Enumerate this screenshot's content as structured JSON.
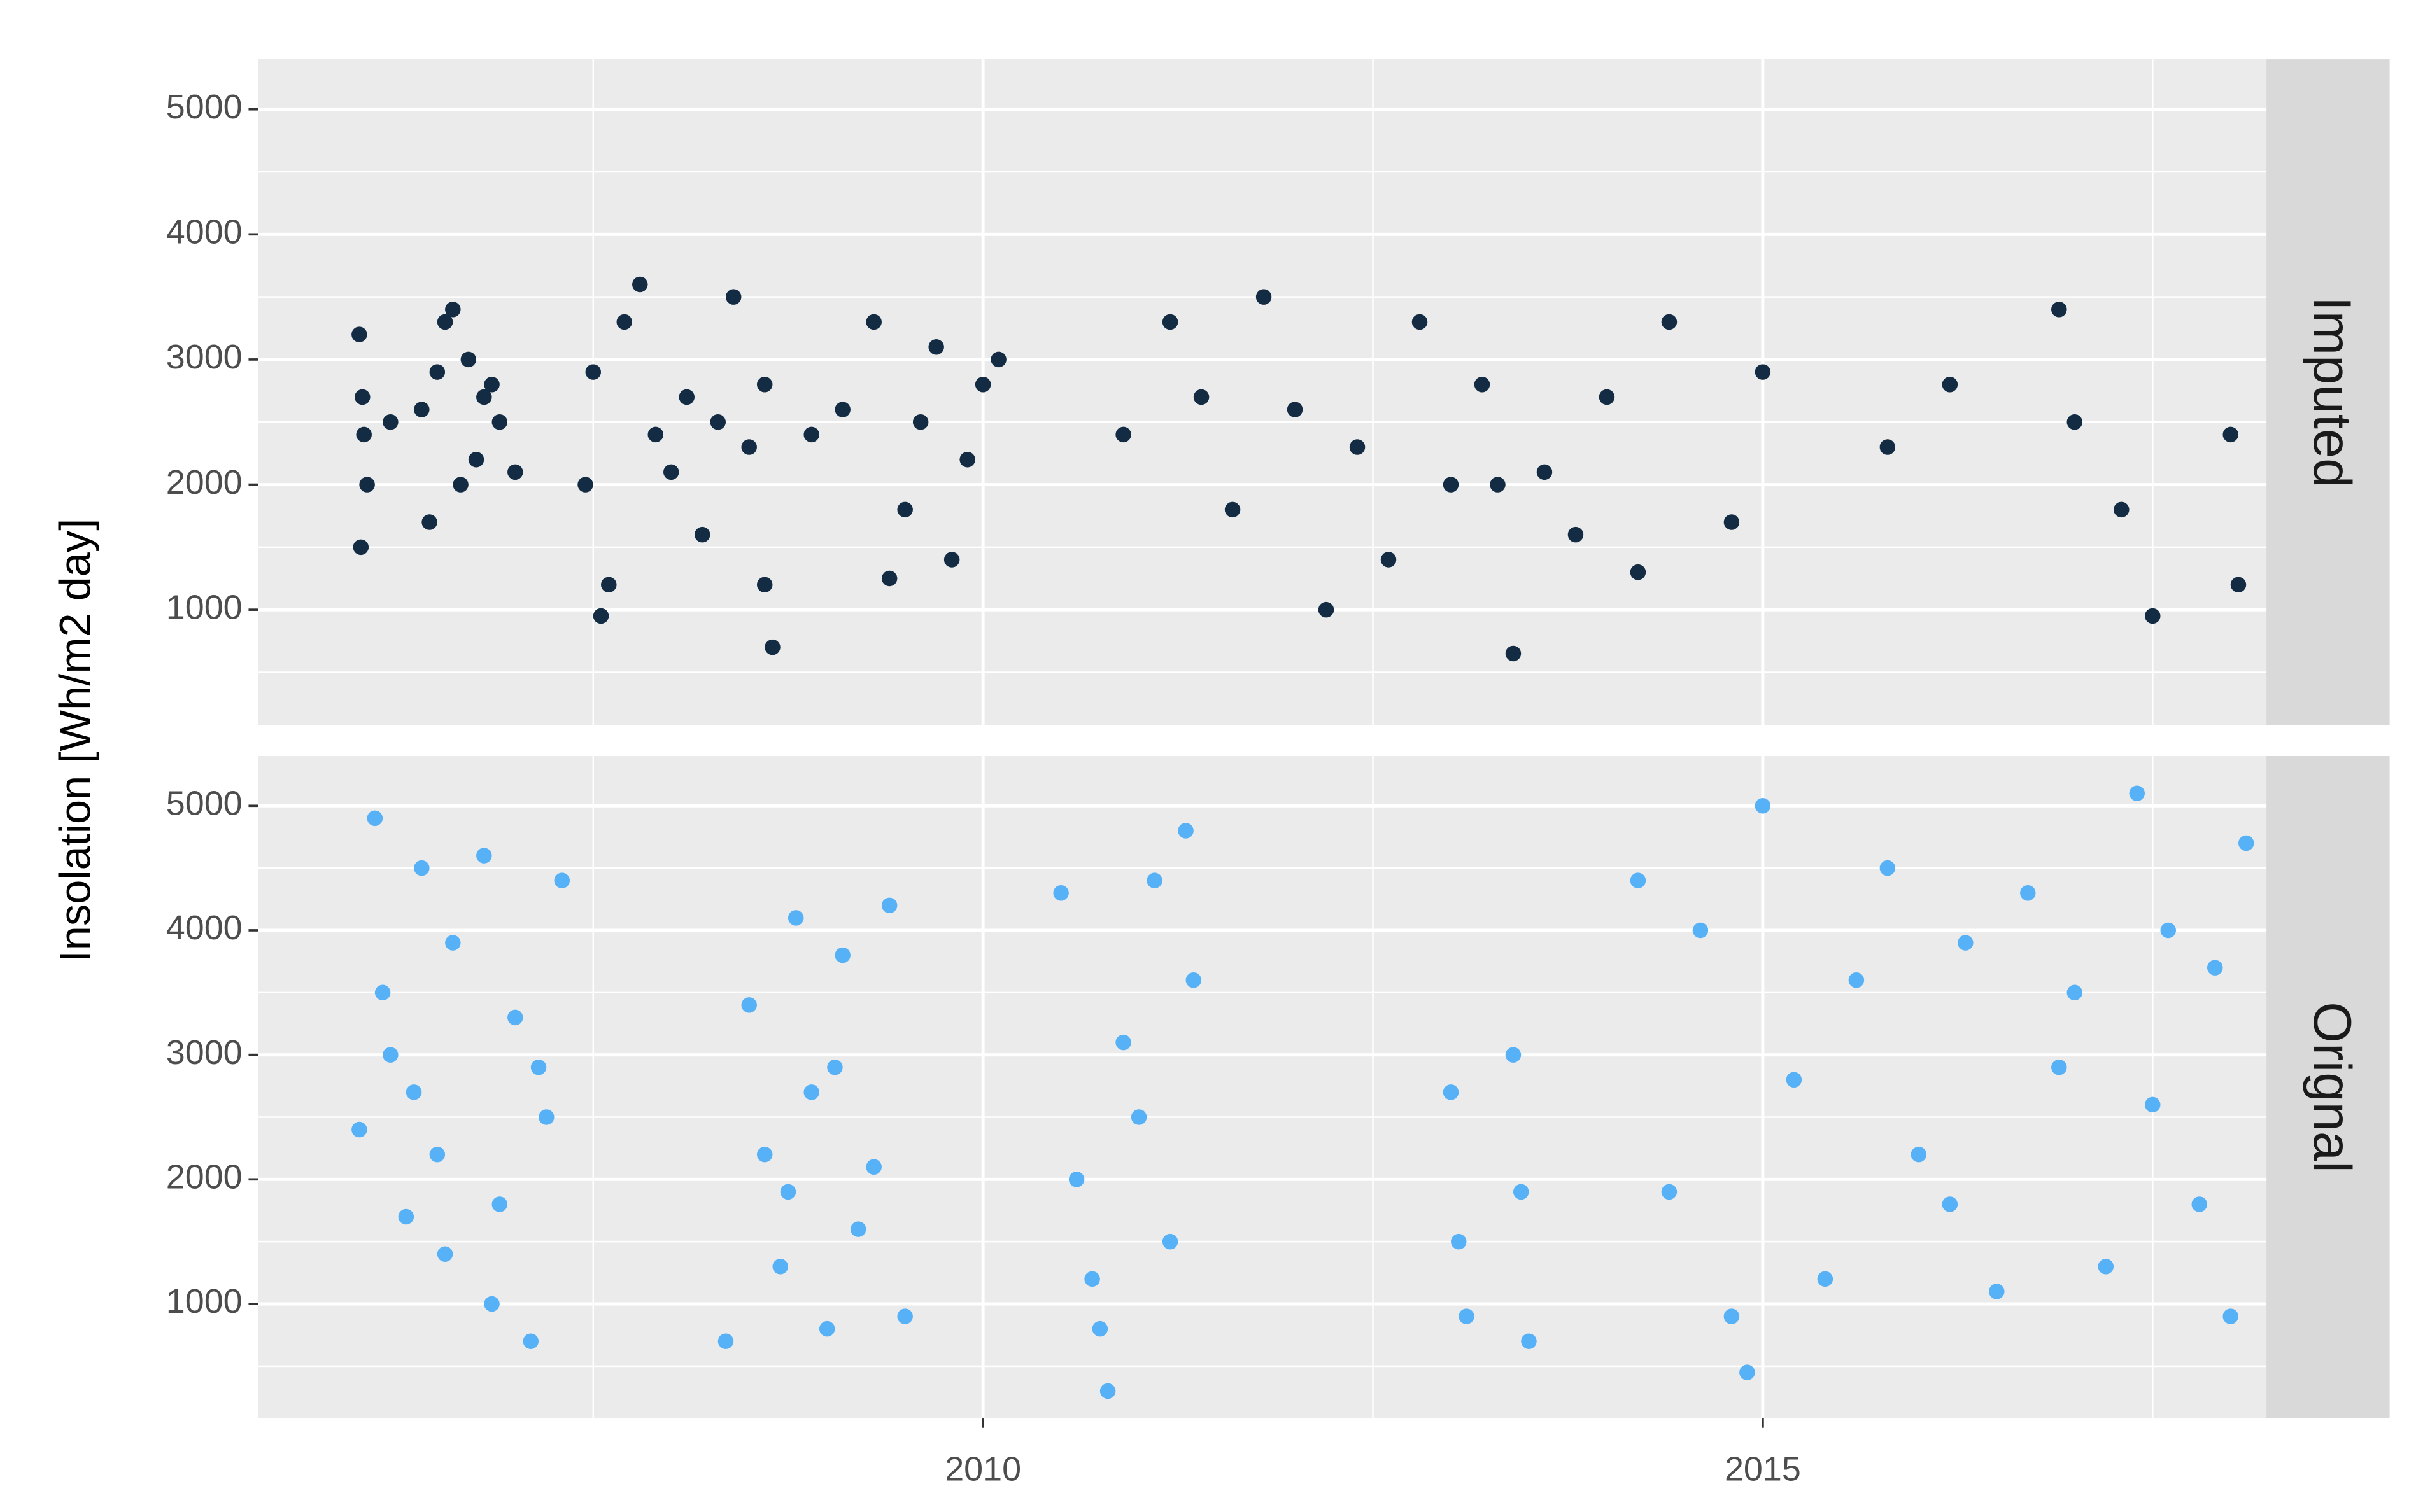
{
  "chart_data": [
    {
      "type": "scatter",
      "facet_label": "Imputed",
      "y_label": "Insolation [Wh/m2 day]",
      "color": "#132b43",
      "x": [
        2006.0,
        2006.02,
        2006.05,
        2006.03,
        2006.01,
        2006.2,
        2006.4,
        2006.5,
        2006.6,
        2006.7,
        2006.75,
        2006.8,
        2006.65,
        2006.55,
        2006.9,
        2007.0,
        2006.45,
        2006.85,
        2007.45,
        2007.5,
        2007.6,
        2007.7,
        2007.8,
        2007.9,
        2008.0,
        2008.1,
        2008.2,
        2008.3,
        2008.4,
        2008.5,
        2008.6,
        2008.65,
        2007.55,
        2008.6,
        2008.9,
        2009.1,
        2009.3,
        2009.5,
        2009.6,
        2009.7,
        2009.8,
        2009.9,
        2010.0,
        2010.1,
        2009.4,
        2010.9,
        2011.2,
        2011.4,
        2011.6,
        2011.8,
        2012.0,
        2012.2,
        2012.4,
        2012.6,
        2012.8,
        2013.0,
        2013.2,
        2013.4,
        2013.6,
        2013.8,
        2014.0,
        2014.2,
        2014.4,
        2013.3,
        2014.8,
        2015.0,
        2015.8,
        2016.2,
        2016.9,
        2017.3,
        2017.0,
        2017.5,
        2018.0,
        2018.05
      ],
      "values": [
        3200,
        2700,
        2000,
        2400,
        1500,
        2500,
        2600,
        2900,
        3400,
        3000,
        2200,
        2700,
        2000,
        3300,
        2500,
        2100,
        1700,
        2800,
        2000,
        2900,
        1200,
        3300,
        3600,
        2400,
        2100,
        2700,
        1600,
        2500,
        3500,
        2300,
        2800,
        700,
        950,
        1200,
        2400,
        2600,
        3300,
        1800,
        2500,
        3100,
        1400,
        2200,
        2800,
        3000,
        1250,
        2400,
        3300,
        2700,
        1800,
        3500,
        2600,
        1000,
        2300,
        1400,
        3300,
        2000,
        2800,
        650,
        2100,
        1600,
        2700,
        1300,
        3300,
        2000,
        1700,
        2900,
        2300,
        2800,
        3400,
        1800,
        2500,
        950,
        2400,
        1200
      ],
      "xlim": [
        2005.35,
        2018.23
      ],
      "ylim": [
        80,
        5400
      ],
      "xticks": [
        2010,
        2015
      ],
      "yticks": [
        1000,
        2000,
        3000,
        4000,
        5000
      ],
      "minor_xticks": [
        2007.5,
        2012.5,
        2017.5
      ],
      "minor_yticks": [
        500,
        1500,
        2500,
        3500,
        4500
      ],
      "grid": true
    },
    {
      "type": "scatter",
      "facet_label": "Orignal",
      "color": "#56b1f7",
      "x": [
        2006.0,
        2006.1,
        2006.2,
        2006.3,
        2006.4,
        2006.5,
        2006.6,
        2006.15,
        2006.35,
        2006.55,
        2006.8,
        2006.9,
        2007.0,
        2007.1,
        2007.2,
        2007.3,
        2006.85,
        2007.15,
        2008.35,
        2008.5,
        2008.6,
        2008.7,
        2008.8,
        2008.9,
        2009.0,
        2009.1,
        2009.2,
        2009.3,
        2009.4,
        2009.5,
        2008.75,
        2009.05,
        2010.5,
        2010.6,
        2010.7,
        2010.8,
        2010.9,
        2011.0,
        2011.1,
        2011.2,
        2011.3,
        2011.35,
        2010.75,
        2013.0,
        2013.05,
        2013.1,
        2013.4,
        2013.45,
        2013.5,
        2014.2,
        2014.4,
        2014.6,
        2014.8,
        2014.9,
        2015.0,
        2015.2,
        2015.4,
        2015.6,
        2015.8,
        2016.0,
        2016.2,
        2016.3,
        2016.5,
        2016.7,
        2016.9,
        2017.0,
        2017.2,
        2017.4,
        2017.5,
        2017.6,
        2017.8,
        2017.9,
        2018.0,
        2018.1
      ],
      "values": [
        2400,
        4900,
        3000,
        1700,
        4500,
        2200,
        3900,
        3500,
        2700,
        1400,
        4600,
        1800,
        3300,
        700,
        2500,
        4400,
        1000,
        2900,
        700,
        3400,
        2200,
        1300,
        4100,
        2700,
        800,
        3800,
        1600,
        2100,
        4200,
        900,
        1900,
        2900,
        4300,
        2000,
        1200,
        300,
        3100,
        2500,
        4400,
        1500,
        4800,
        3600,
        800,
        2700,
        1500,
        900,
        3000,
        1900,
        700,
        4400,
        1900,
        4000,
        900,
        450,
        5000,
        2800,
        1200,
        3600,
        4500,
        2200,
        1800,
        3900,
        1100,
        4300,
        2900,
        3500,
        1300,
        5100,
        2600,
        4000,
        1800,
        3700,
        900,
        4700
      ],
      "xlim": [
        2005.35,
        2018.23
      ],
      "ylim": [
        80,
        5400
      ],
      "xticks": [
        2010,
        2015
      ],
      "yticks": [
        1000,
        2000,
        3000,
        4000,
        5000
      ],
      "minor_xticks": [
        2007.5,
        2012.5,
        2017.5
      ],
      "minor_yticks": [
        500,
        1500,
        2500,
        3500,
        4500
      ],
      "grid": true
    }
  ]
}
